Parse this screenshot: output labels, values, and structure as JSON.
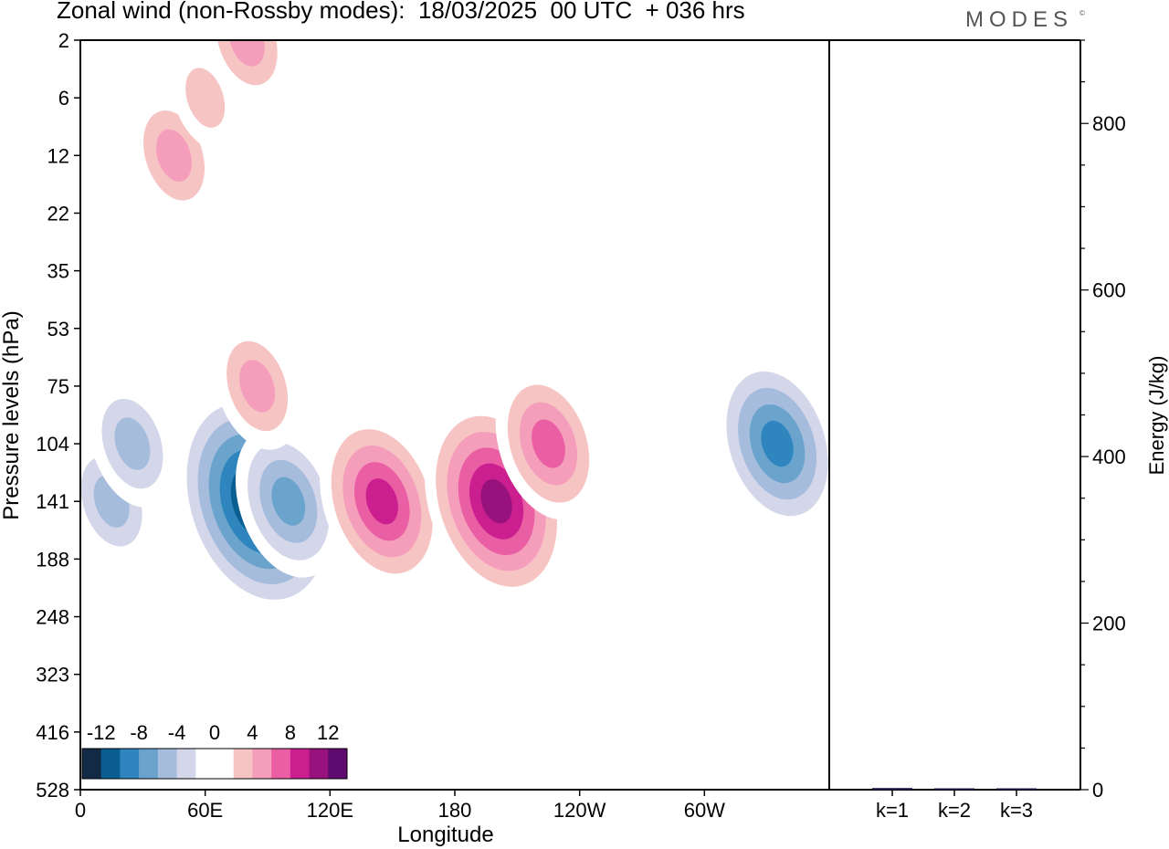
{
  "header": {
    "title": "Zonal wind (non-Rossby modes):  18/03/2025  00 UTC  + 036 hrs",
    "brand": "MODES",
    "brand_mark": "©"
  },
  "colors": {
    "palette": [
      "#122a45",
      "#0a5e92",
      "#2f86bf",
      "#6aa3cc",
      "#a6bcdc",
      "#d4d6ea",
      "#ffffff",
      "#ffffff",
      "#f7c4c4",
      "#f59ebb",
      "#ea5fa4",
      "#cc1f8f",
      "#98127e",
      "#5e0a6e"
    ]
  },
  "chart_data": [
    {
      "type": "heatmap",
      "xlabel": "Longitude",
      "ylabel": "Pressure levels (hPa)",
      "x_ticks": [
        "0",
        "60E",
        "120E",
        "180",
        "120W",
        "60W"
      ],
      "x_tick_degrees": [
        0,
        60,
        120,
        180,
        240,
        300
      ],
      "x_range": [
        0,
        360
      ],
      "y_ticks": [
        "2",
        "6",
        "12",
        "22",
        "35",
        "53",
        "75",
        "104",
        "141",
        "188",
        "248",
        "323",
        "416",
        "528"
      ],
      "y_scale": "pressure levels, top to bottom",
      "colorbar": {
        "labels": [
          "-12",
          "-8",
          "-4",
          "0",
          "4",
          "8",
          "12"
        ],
        "label_values": [
          -12,
          -8,
          -4,
          0,
          4,
          8,
          12
        ],
        "levels": [
          -14,
          -12,
          -10,
          -8,
          -6,
          -4,
          -2,
          0,
          2,
          4,
          6,
          8,
          10,
          12,
          14
        ],
        "placement": "bottom-left"
      },
      "features": [
        {
          "lon": 85,
          "level": "141",
          "value": -14
        },
        {
          "lon": 100,
          "level": "141",
          "value": -8
        },
        {
          "lon": 15,
          "level": "141",
          "value": -6
        },
        {
          "lon": 25,
          "level": "104",
          "value": -6
        },
        {
          "lon": 335,
          "level": "104",
          "value": -10
        },
        {
          "lon": 145,
          "level": "141",
          "value": 10
        },
        {
          "lon": 200,
          "level": "141",
          "value": 12
        },
        {
          "lon": 225,
          "level": "104",
          "value": 8
        },
        {
          "lon": 85,
          "level": "75",
          "value": 6
        },
        {
          "lon": 45,
          "level": "12",
          "value": 6
        },
        {
          "lon": 60,
          "level": "6",
          "value": 4
        },
        {
          "lon": 80,
          "level": "2",
          "value": 6
        }
      ]
    },
    {
      "type": "bar",
      "categories": [
        "k=1",
        "k=2",
        "k=3"
      ],
      "values": [
        2,
        1,
        1
      ],
      "ylabel": "Energy (J/kg)",
      "ylim": [
        0,
        900
      ],
      "y_ticks": [
        0,
        200,
        400,
        600,
        800
      ],
      "y_minor_step": 50
    }
  ]
}
